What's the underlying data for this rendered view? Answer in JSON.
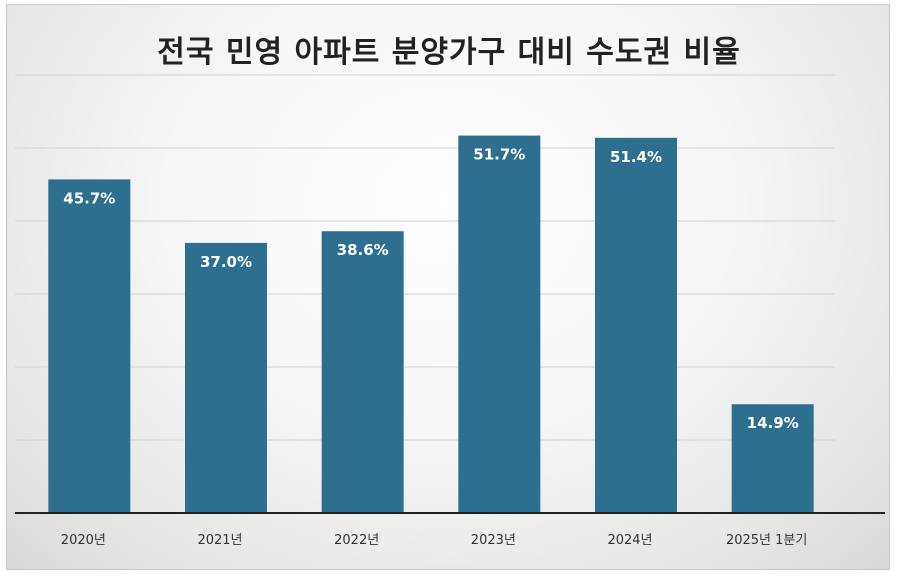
{
  "chart_data": {
    "type": "bar",
    "title": "전국 민영 아파트 분양가구 대비 수도권 비율",
    "categories": [
      "2020년",
      "2021년",
      "2022년",
      "2023년",
      "2024년",
      "2025년 1분기"
    ],
    "values": [
      45.7,
      37.0,
      38.6,
      51.7,
      51.4,
      14.9
    ],
    "value_labels": [
      "45.7%",
      "37.0%",
      "38.6%",
      "51.7%",
      "51.4%",
      "14.9%"
    ],
    "xlabel": "",
    "ylabel": "",
    "ylim": [
      0,
      60
    ],
    "grid": true,
    "legend": "none",
    "bar_color": "#2e6e8e"
  }
}
